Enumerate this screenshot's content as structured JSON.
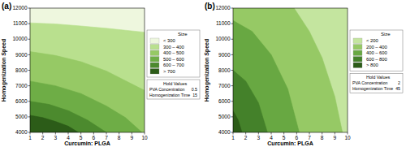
{
  "chart_data": [
    {
      "type": "contour",
      "title": "(a)",
      "x_label": "Curcumin: PLGA",
      "y_label": "Homogenization Speed",
      "xlim": [
        1,
        10
      ],
      "ylim": [
        4000,
        12000
      ],
      "xticks": [
        1,
        2,
        3,
        4,
        5,
        6,
        7,
        8,
        9,
        10
      ],
      "yticks": [
        4000,
        5000,
        6000,
        7000,
        8000,
        9000,
        10000,
        11000,
        12000
      ],
      "legend_title": "Size",
      "bands": [
        {
          "label": "< 300",
          "color": "#eef7de"
        },
        {
          "label": "300 – 400",
          "color": "#b9e08e"
        },
        {
          "label": "400 – 500",
          "color": "#96c965"
        },
        {
          "label": "500 – 600",
          "color": "#6ead46"
        },
        {
          "label": "600 – 700",
          "color": "#4c8a2e"
        },
        {
          "label": "> 700",
          "color": "#2c5c18"
        }
      ],
      "boundaries": [
        {
          "x": [
            1,
            3,
            5,
            7,
            10
          ],
          "y": [
            11050,
            10980,
            10850,
            10700,
            10450
          ]
        },
        {
          "x": [
            1,
            3,
            5,
            7,
            10
          ],
          "y": [
            9200,
            8950,
            8550,
            7950,
            6700
          ]
        },
        {
          "x": [
            1,
            3,
            5,
            7,
            8.5,
            9.8
          ],
          "y": [
            7300,
            7000,
            6500,
            5700,
            4950,
            4000
          ]
        },
        {
          "x": [
            1,
            2.5,
            4,
            5.5,
            7
          ],
          "y": [
            6000,
            5800,
            5400,
            4800,
            4000
          ]
        },
        {
          "x": [
            1,
            2,
            3,
            4,
            4.8
          ],
          "y": [
            5100,
            4950,
            4700,
            4400,
            4000
          ]
        }
      ],
      "hold_values": {
        "title": "Hold Values",
        "items": [
          {
            "name": "PVA Concentration",
            "value": 0.5
          },
          {
            "name": "Homogenization Time",
            "value": 15
          }
        ]
      }
    },
    {
      "type": "contour",
      "title": "(b)",
      "x_label": "Curcumin: PLGA",
      "y_label": "Homogenization Speed",
      "xlim": [
        1,
        10
      ],
      "ylim": [
        4000,
        12000
      ],
      "xticks": [
        1,
        2,
        3,
        4,
        5,
        6,
        7,
        8,
        9,
        10
      ],
      "yticks": [
        4000,
        5000,
        6000,
        7000,
        8000,
        9000,
        10000,
        11000,
        12000
      ],
      "legend_title": "Size",
      "bands": [
        {
          "label": "< 200",
          "color": "#c4e59f"
        },
        {
          "label": "200 – 400",
          "color": "#96c965"
        },
        {
          "label": "400 – 600",
          "color": "#68a842"
        },
        {
          "label": "600 – 800",
          "color": "#44812a"
        },
        {
          "label": "> 800",
          "color": "#2c5c18"
        }
      ],
      "boundaries": [
        {
          "x": [
            5.8,
            7,
            8,
            9,
            9.6
          ],
          "y": [
            12000,
            10500,
            8800,
            6300,
            4000
          ]
        },
        {
          "x": [
            1,
            2.5,
            4,
            5.3,
            6.2
          ],
          "y": [
            11200,
            10500,
            9000,
            6800,
            4000
          ]
        },
        {
          "x": [
            1,
            2,
            3,
            3.7
          ],
          "y": [
            8000,
            7300,
            5900,
            4000
          ]
        },
        {
          "x": [
            1,
            1.4,
            1.7
          ],
          "y": [
            5400,
            4800,
            4000
          ]
        }
      ],
      "hold_values": {
        "title": "Hold Values",
        "items": [
          {
            "name": "PVA Concentration",
            "value": 2
          },
          {
            "name": "Homogenization Time",
            "value": 45
          }
        ]
      }
    }
  ]
}
